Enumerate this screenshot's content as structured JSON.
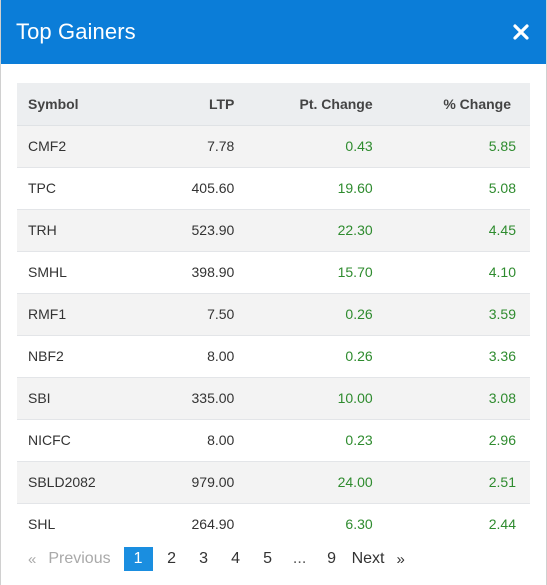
{
  "header": {
    "title": "Top Gainers"
  },
  "table": {
    "columns": {
      "symbol": "Symbol",
      "ltp": "LTP",
      "pt_change": "Pt. Change",
      "pct_change": "% Change"
    },
    "rows": [
      {
        "symbol": "CMF2",
        "ltp": "7.78",
        "pt_change": "0.43",
        "pct_change": "5.85"
      },
      {
        "symbol": "TPC",
        "ltp": "405.60",
        "pt_change": "19.60",
        "pct_change": "5.08"
      },
      {
        "symbol": "TRH",
        "ltp": "523.90",
        "pt_change": "22.30",
        "pct_change": "4.45"
      },
      {
        "symbol": "SMHL",
        "ltp": "398.90",
        "pt_change": "15.70",
        "pct_change": "4.10"
      },
      {
        "symbol": "RMF1",
        "ltp": "7.50",
        "pt_change": "0.26",
        "pct_change": "3.59"
      },
      {
        "symbol": "NBF2",
        "ltp": "8.00",
        "pt_change": "0.26",
        "pct_change": "3.36"
      },
      {
        "symbol": "SBI",
        "ltp": "335.00",
        "pt_change": "10.00",
        "pct_change": "3.08"
      },
      {
        "symbol": "NICFC",
        "ltp": "8.00",
        "pt_change": "0.23",
        "pct_change": "2.96"
      },
      {
        "symbol": "SBLD2082",
        "ltp": "979.00",
        "pt_change": "24.00",
        "pct_change": "2.51"
      },
      {
        "symbol": "SHL",
        "ltp": "264.90",
        "pt_change": "6.30",
        "pct_change": "2.44"
      }
    ]
  },
  "pagination": {
    "prev_arrow": "«",
    "prev_label": "Previous",
    "pages": [
      "1",
      "2",
      "3",
      "4",
      "5"
    ],
    "active_page": "1",
    "ellipsis": "...",
    "last_page": "9",
    "next_label": "Next",
    "next_arrow": "»"
  },
  "colors": {
    "header_bg": "#0b7dd8",
    "positive": "#2e8b2e",
    "active_page": "#1a8ee0"
  },
  "icons": {
    "close": "close-icon"
  }
}
